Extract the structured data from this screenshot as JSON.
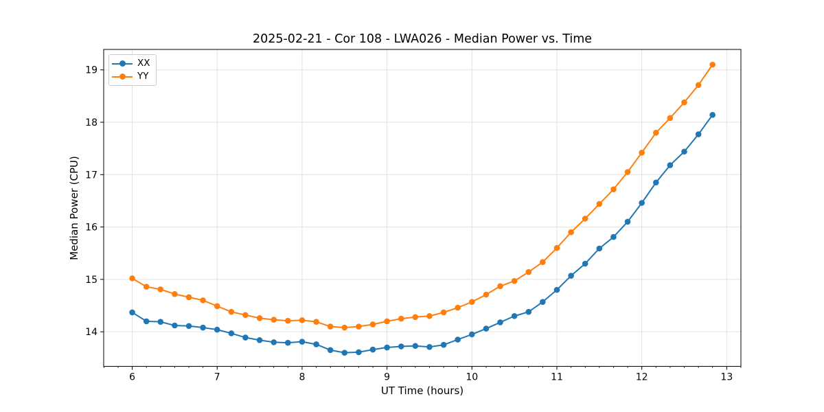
{
  "chart_data": {
    "type": "line",
    "title": "2025-02-21 - Cor 108 - LWA026 - Median Power vs. Time",
    "xlabel": "UT Time (hours)",
    "ylabel": "Median Power (CPU)",
    "xlim": [
      5.664,
      13.167
    ],
    "ylim": [
      13.34,
      19.39
    ],
    "x_ticks": [
      6,
      7,
      8,
      9,
      10,
      11,
      12,
      13
    ],
    "y_ticks": [
      14,
      15,
      16,
      17,
      18,
      19
    ],
    "x_minor_step": 0.16667,
    "grid": true,
    "grid_color": "#e0e0e0",
    "legend_position": "upper left",
    "x": [
      6.0,
      6.167,
      6.333,
      6.5,
      6.667,
      6.833,
      7.0,
      7.167,
      7.333,
      7.5,
      7.667,
      7.833,
      8.0,
      8.167,
      8.333,
      8.5,
      8.667,
      8.833,
      9.0,
      9.167,
      9.333,
      9.5,
      9.667,
      9.833,
      10.0,
      10.167,
      10.333,
      10.5,
      10.667,
      10.833,
      11.0,
      11.167,
      11.333,
      11.5,
      11.667,
      11.833,
      12.0,
      12.167,
      12.333,
      12.5,
      12.667,
      12.833
    ],
    "series": [
      {
        "name": "XX",
        "color": "#1f77b4",
        "values": [
          14.37,
          14.2,
          14.19,
          14.12,
          14.11,
          14.08,
          14.04,
          13.97,
          13.89,
          13.84,
          13.8,
          13.79,
          13.81,
          13.76,
          13.65,
          13.6,
          13.61,
          13.66,
          13.7,
          13.72,
          13.73,
          13.71,
          13.75,
          13.85,
          13.95,
          14.06,
          14.18,
          14.3,
          14.38,
          14.57,
          14.8,
          15.07,
          15.3,
          15.59,
          15.81,
          16.1,
          16.46,
          16.85,
          17.18,
          17.44,
          17.77,
          18.14
        ]
      },
      {
        "name": "YY",
        "color": "#ff7f0e",
        "values": [
          15.02,
          14.86,
          14.81,
          14.72,
          14.66,
          14.6,
          14.49,
          14.38,
          14.32,
          14.26,
          14.23,
          14.21,
          14.22,
          14.19,
          14.1,
          14.08,
          14.1,
          14.14,
          14.2,
          14.25,
          14.28,
          14.3,
          14.37,
          14.46,
          14.57,
          14.71,
          14.87,
          14.97,
          15.14,
          15.33,
          15.6,
          15.9,
          16.16,
          16.44,
          16.72,
          17.05,
          17.42,
          17.8,
          18.08,
          18.38,
          18.71,
          19.1
        ]
      }
    ]
  }
}
